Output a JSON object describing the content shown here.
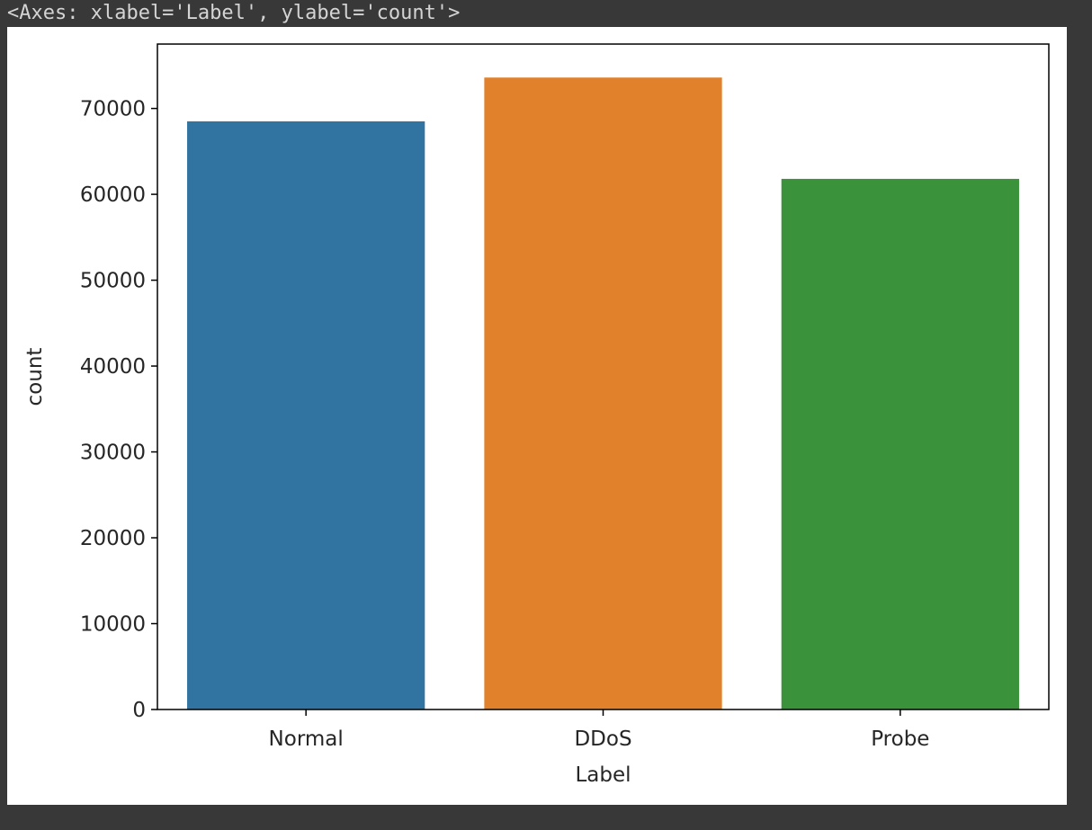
{
  "output_header": "<Axes: xlabel='Label', ylabel='count'>",
  "chart_data": {
    "type": "bar",
    "categories": [
      "Normal",
      "DDoS",
      "Probe"
    ],
    "values": [
      68500,
      73600,
      61800
    ],
    "colors": [
      "#3274a1",
      "#e1812c",
      "#3a923a"
    ],
    "xlabel": "Label",
    "ylabel": "count",
    "ylim": [
      0,
      77500
    ],
    "yticks": [
      0,
      10000,
      20000,
      30000,
      40000,
      50000,
      60000,
      70000
    ],
    "grid": false
  }
}
